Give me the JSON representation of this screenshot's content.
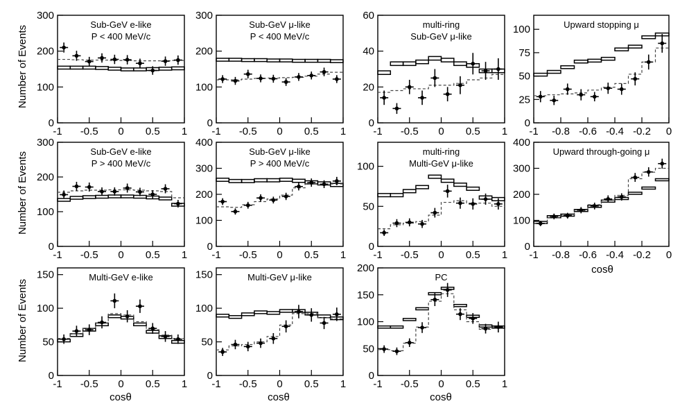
{
  "figure": {
    "ylabel_rows": [
      "Number of Events",
      "Number of Events",
      "Number of Events"
    ],
    "xlabels": [
      "cosθ",
      "cosθ",
      "cosθ",
      "cosθ"
    ]
  },
  "chart_data": [
    {
      "type": "histogram",
      "title": [
        "Sub-GeV e-like",
        "P < 400 MeV/c"
      ],
      "xlim": [
        -1,
        1
      ],
      "ylim": [
        0,
        300
      ],
      "xticks": [
        -1,
        -0.5,
        0,
        0.5,
        1
      ],
      "xticklabels": [
        "-1",
        "-0.5",
        "0",
        "0.5",
        "1"
      ],
      "yticks": [
        0,
        100,
        200,
        300
      ],
      "yticklabels": [
        "0",
        "100",
        "200",
        "300"
      ],
      "bin_edges": [
        -1,
        -0.8,
        -0.6,
        -0.4,
        -0.2,
        0,
        0.2,
        0.4,
        0.6,
        0.8,
        1
      ],
      "no_osc": [
        [
          150,
          158
        ],
        [
          150,
          158
        ],
        [
          150,
          158
        ],
        [
          149,
          157
        ],
        [
          147,
          155
        ],
        [
          145,
          153
        ],
        [
          145,
          153
        ],
        [
          146,
          154
        ],
        [
          147,
          155
        ],
        [
          148,
          156
        ]
      ],
      "osc": [
        177,
        176,
        175,
        175,
        174,
        174,
        173,
        173,
        173,
        174
      ],
      "data": [
        210,
        187,
        171,
        181,
        177,
        176,
        166,
        146,
        172,
        175
      ],
      "errors": [
        14,
        14,
        13,
        13,
        13,
        13,
        13,
        12,
        13,
        13
      ]
    },
    {
      "type": "histogram",
      "title": [
        "Sub-GeV μ-like",
        "P < 400 MeV/c"
      ],
      "xlim": [
        -1,
        1
      ],
      "ylim": [
        0,
        300
      ],
      "xticks": [
        -1,
        -0.5,
        0,
        0.5,
        1
      ],
      "xticklabels": [
        "-1",
        "-0.5",
        "0",
        "0.5",
        "1"
      ],
      "yticks": [
        0,
        100,
        200,
        300
      ],
      "yticklabels": [
        "0",
        "100",
        "200",
        "300"
      ],
      "bin_edges": [
        -1,
        -0.8,
        -0.6,
        -0.4,
        -0.2,
        0,
        0.2,
        0.4,
        0.6,
        0.8,
        1
      ],
      "no_osc": [
        [
          172,
          180
        ],
        [
          172,
          180
        ],
        [
          171,
          179
        ],
        [
          171,
          179
        ],
        [
          170,
          178
        ],
        [
          170,
          178
        ],
        [
          169,
          177
        ],
        [
          169,
          177
        ],
        [
          169,
          177
        ],
        [
          168,
          176
        ]
      ],
      "osc": [
        120,
        120,
        122,
        124,
        125,
        126,
        127,
        130,
        136,
        141
      ],
      "data": [
        122,
        117,
        136,
        124,
        123,
        114,
        128,
        132,
        142,
        122
      ],
      "errors": [
        11,
        11,
        12,
        11,
        11,
        11,
        11,
        11,
        12,
        11
      ]
    },
    {
      "type": "histogram",
      "title": [
        "multi-ring",
        "Sub-GeV μ-like"
      ],
      "xlim": [
        -1,
        1
      ],
      "ylim": [
        0,
        60
      ],
      "xticks": [
        -1,
        -0.5,
        0,
        0.5,
        1
      ],
      "xticklabels": [
        "-1",
        "-0.5",
        "0",
        "0.5",
        "1"
      ],
      "yticks": [
        0,
        20,
        40,
        60
      ],
      "yticklabels": [
        "0",
        "20",
        "40",
        "60"
      ],
      "bin_edges": [
        -1,
        -0.8,
        -0.6,
        -0.4,
        -0.2,
        0,
        0.2,
        0.4,
        0.6,
        0.8,
        1
      ],
      "no_osc": [
        [
          27,
          29
        ],
        [
          32,
          34
        ],
        [
          32,
          34
        ],
        [
          33,
          35
        ],
        [
          35,
          37
        ],
        [
          34,
          36
        ],
        [
          32,
          34
        ],
        [
          31,
          33
        ],
        [
          28,
          30
        ],
        [
          28,
          30
        ]
      ],
      "osc": [
        17,
        18,
        19,
        19,
        21,
        21,
        22,
        24,
        25,
        27
      ],
      "data": [
        14,
        8,
        20,
        14,
        25,
        16,
        21,
        33,
        29,
        30
      ],
      "errors": [
        4,
        3,
        4,
        4,
        5,
        4,
        5,
        6,
        5,
        6
      ]
    },
    {
      "type": "histogram",
      "title": [
        "Upward stopping μ"
      ],
      "xlim": [
        -1,
        0
      ],
      "ylim": [
        0,
        115
      ],
      "xticks": [
        -1,
        -0.8,
        -0.6,
        -0.4,
        -0.2,
        0
      ],
      "xticklabels": [
        "-1",
        "-0.8",
        "-0.6",
        "-0.4",
        "-0.2",
        "0"
      ],
      "yticks": [
        0,
        25,
        50,
        75,
        100
      ],
      "yticklabels": [
        "0",
        "25",
        "50",
        "75",
        "100"
      ],
      "bin_edges": [
        -1,
        -0.9,
        -0.8,
        -0.7,
        -0.6,
        -0.5,
        -0.4,
        -0.3,
        -0.2,
        -0.1,
        0
      ],
      "no_osc": [
        [
          50,
          53
        ],
        [
          53,
          56
        ],
        [
          58,
          61
        ],
        [
          64,
          67
        ],
        [
          65,
          68
        ],
        [
          67,
          70
        ],
        [
          77,
          80
        ],
        [
          80,
          83
        ],
        [
          90,
          93
        ],
        [
          93,
          96
        ]
      ],
      "osc": [
        29,
        30,
        31,
        32,
        35,
        38,
        42,
        52,
        65,
        80
      ],
      "data": [
        28,
        24,
        36,
        30,
        28,
        37,
        36,
        47,
        65,
        85
      ],
      "errors": [
        6,
        5,
        6,
        6,
        5,
        6,
        6,
        7,
        8,
        10
      ]
    },
    {
      "type": "histogram",
      "title": [
        "Sub-GeV e-like",
        "P > 400 MeV/c"
      ],
      "xlim": [
        -1,
        1
      ],
      "ylim": [
        0,
        300
      ],
      "xticks": [
        -1,
        -0.5,
        0,
        0.5,
        1
      ],
      "xticklabels": [
        "-1",
        "-0.5",
        "0",
        "0.5",
        "1"
      ],
      "yticks": [
        0,
        100,
        200,
        300
      ],
      "yticklabels": [
        "0",
        "100",
        "200",
        "300"
      ],
      "bin_edges": [
        -1,
        -0.8,
        -0.6,
        -0.4,
        -0.2,
        0,
        0.2,
        0.4,
        0.6,
        0.8,
        1
      ],
      "no_osc": [
        [
          130,
          138
        ],
        [
          136,
          144
        ],
        [
          138,
          146
        ],
        [
          139,
          147
        ],
        [
          140,
          148
        ],
        [
          140,
          148
        ],
        [
          139,
          147
        ],
        [
          137,
          145
        ],
        [
          134,
          142
        ],
        [
          116,
          124
        ]
      ],
      "osc": [
        156,
        160,
        162,
        162,
        163,
        163,
        162,
        160,
        158,
        140
      ],
      "data": [
        149,
        173,
        171,
        158,
        158,
        168,
        157,
        150,
        166,
        123
      ],
      "errors": [
        12,
        13,
        13,
        12,
        12,
        13,
        12,
        12,
        13,
        11
      ]
    },
    {
      "type": "histogram",
      "title": [
        "Sub-GeV μ-like",
        "P > 400 MeV/c"
      ],
      "xlim": [
        -1,
        1
      ],
      "ylim": [
        0,
        400
      ],
      "xticks": [
        -1,
        -0.5,
        0,
        0.5,
        1
      ],
      "xticklabels": [
        "-1",
        "-0.5",
        "0",
        "0.5",
        "1"
      ],
      "yticks": [
        0,
        100,
        200,
        300,
        400
      ],
      "yticklabels": [
        "0",
        "100",
        "200",
        "300",
        "400"
      ],
      "bin_edges": [
        -1,
        -0.8,
        -0.6,
        -0.4,
        -0.2,
        0,
        0.2,
        0.4,
        0.6,
        0.8,
        1
      ],
      "no_osc": [
        [
          250,
          262
        ],
        [
          245,
          257
        ],
        [
          245,
          257
        ],
        [
          248,
          260
        ],
        [
          248,
          260
        ],
        [
          250,
          262
        ],
        [
          246,
          258
        ],
        [
          240,
          252
        ],
        [
          236,
          248
        ],
        [
          230,
          242
        ]
      ],
      "osc": [
        152,
        150,
        160,
        172,
        182,
        197,
        225,
        240,
        235,
        240
      ],
      "data": [
        172,
        134,
        158,
        186,
        178,
        192,
        230,
        245,
        239,
        251
      ],
      "errors": [
        13,
        12,
        13,
        14,
        13,
        14,
        15,
        16,
        15,
        16
      ]
    },
    {
      "type": "histogram",
      "title": [
        "multi-ring",
        "Multi-GeV μ-like"
      ],
      "xlim": [
        -1,
        1
      ],
      "ylim": [
        0,
        130
      ],
      "xticks": [
        -1,
        -0.5,
        0,
        0.5,
        1
      ],
      "xticklabels": [
        "-1",
        "-0.5",
        "0",
        "0.5",
        "1"
      ],
      "yticks": [
        0,
        50,
        100
      ],
      "yticklabels": [
        "0",
        "50",
        "100"
      ],
      "bin_edges": [
        -1,
        -0.8,
        -0.6,
        -0.4,
        -0.2,
        0,
        0.2,
        0.4,
        0.6,
        0.8,
        1
      ],
      "no_osc": [
        [
          62,
          66
        ],
        [
          62,
          66
        ],
        [
          67,
          71
        ],
        [
          72,
          76
        ],
        [
          85,
          89
        ],
        [
          80,
          84
        ],
        [
          75,
          79
        ],
        [
          70,
          74
        ],
        [
          59,
          63
        ],
        [
          57,
          61
        ]
      ],
      "osc": [
        22,
        27,
        29,
        31,
        39,
        55,
        57,
        54,
        54,
        50
      ],
      "data": [
        17,
        29,
        30,
        28,
        42,
        69,
        54,
        53,
        59,
        53
      ],
      "errors": [
        4,
        5,
        5,
        5,
        6,
        8,
        7,
        7,
        7,
        7
      ]
    },
    {
      "type": "histogram",
      "title": [
        "Upward through-going μ"
      ],
      "xlim": [
        -1,
        0
      ],
      "ylim": [
        0,
        400
      ],
      "xticks": [
        -1,
        -0.8,
        -0.6,
        -0.4,
        -0.2,
        0
      ],
      "xticklabels": [
        "-1",
        "-0.8",
        "-0.6",
        "-0.4",
        "-0.2",
        "0"
      ],
      "yticks": [
        0,
        100,
        200,
        300,
        400
      ],
      "yticklabels": [
        "0",
        "100",
        "200",
        "300",
        "400"
      ],
      "bin_edges": [
        -1,
        -0.9,
        -0.8,
        -0.7,
        -0.6,
        -0.5,
        -0.4,
        -0.3,
        -0.2,
        -0.1,
        0
      ],
      "no_osc": [
        [
          88,
          96
        ],
        [
          110,
          118
        ],
        [
          116,
          124
        ],
        [
          134,
          142
        ],
        [
          150,
          158
        ],
        [
          170,
          178
        ],
        [
          180,
          188
        ],
        [
          200,
          208
        ],
        [
          220,
          228
        ],
        [
          252,
          260
        ]
      ],
      "osc": [
        88,
        110,
        120,
        140,
        160,
        178,
        196,
        260,
        285,
        300
      ],
      "data": [
        88,
        115,
        118,
        139,
        155,
        182,
        190,
        265,
        286,
        318
      ],
      "errors": [
        10,
        11,
        11,
        12,
        13,
        14,
        14,
        17,
        18,
        19
      ]
    },
    {
      "type": "histogram",
      "title": [
        "Multi-GeV e-like"
      ],
      "xlim": [
        -1,
        1
      ],
      "ylim": [
        0,
        160
      ],
      "xticks": [
        -1,
        -0.5,
        0,
        0.5,
        1
      ],
      "xticklabels": [
        "-1",
        "-0.5",
        "0",
        "0.5",
        "1"
      ],
      "yticks": [
        0,
        50,
        100,
        150
      ],
      "yticklabels": [
        "0",
        "50",
        "100",
        "150"
      ],
      "bin_edges": [
        -1,
        -0.8,
        -0.6,
        -0.4,
        -0.2,
        0,
        0.2,
        0.4,
        0.6,
        0.8,
        1
      ],
      "no_osc": [
        [
          50,
          54
        ],
        [
          58,
          62
        ],
        [
          66,
          70
        ],
        [
          74,
          78
        ],
        [
          86,
          90
        ],
        [
          84,
          88
        ],
        [
          74,
          78
        ],
        [
          63,
          67
        ],
        [
          55,
          59
        ],
        [
          48,
          52
        ]
      ],
      "osc": [
        55,
        62,
        70,
        78,
        92,
        90,
        80,
        68,
        60,
        55
      ],
      "data": [
        54,
        66,
        68,
        79,
        111,
        88,
        103,
        70,
        58,
        54
      ],
      "errors": [
        7,
        8,
        8,
        9,
        11,
        9,
        10,
        8,
        8,
        7
      ]
    },
    {
      "type": "histogram",
      "title": [
        "Multi-GeV μ-like"
      ],
      "xlim": [
        -1,
        1
      ],
      "ylim": [
        0,
        160
      ],
      "xticks": [
        -1,
        -0.5,
        0,
        0.5,
        1
      ],
      "xticklabels": [
        "-1",
        "-0.5",
        "0",
        "0.5",
        "1"
      ],
      "yticks": [
        0,
        50,
        100,
        150
      ],
      "yticklabels": [
        "0",
        "50",
        "100",
        "150"
      ],
      "bin_edges": [
        -1,
        -0.8,
        -0.6,
        -0.4,
        -0.2,
        0,
        0.2,
        0.4,
        0.6,
        0.8,
        1
      ],
      "no_osc": [
        [
          87,
          91
        ],
        [
          85,
          89
        ],
        [
          89,
          93
        ],
        [
          92,
          96
        ],
        [
          91,
          95
        ],
        [
          94,
          98
        ],
        [
          94,
          98
        ],
        [
          90,
          94
        ],
        [
          86,
          90
        ],
        [
          83,
          87
        ]
      ],
      "osc": [
        38,
        44,
        46,
        50,
        58,
        75,
        92,
        92,
        86,
        84
      ],
      "data": [
        35,
        46,
        43,
        48,
        55,
        73,
        95,
        90,
        78,
        91
      ],
      "errors": [
        6,
        7,
        7,
        7,
        8,
        9,
        10,
        10,
        9,
        10
      ]
    },
    {
      "type": "histogram",
      "title": [
        "PC"
      ],
      "xlim": [
        -1,
        1
      ],
      "ylim": [
        0,
        200
      ],
      "xticks": [
        -1,
        -0.5,
        0,
        0.5,
        1
      ],
      "xticklabels": [
        "-1",
        "-0.5",
        "0",
        "0.5",
        "1"
      ],
      "yticks": [
        0,
        50,
        100,
        150,
        200
      ],
      "yticklabels": [
        "0",
        "50",
        "100",
        "150",
        "200"
      ],
      "bin_edges": [
        -1,
        -0.8,
        -0.6,
        -0.4,
        -0.2,
        0,
        0.2,
        0.4,
        0.6,
        0.8,
        1
      ],
      "no_osc": [
        [
          88,
          92
        ],
        [
          88,
          92
        ],
        [
          102,
          106
        ],
        [
          122,
          126
        ],
        [
          150,
          154
        ],
        [
          160,
          164
        ],
        [
          128,
          132
        ],
        [
          108,
          112
        ],
        [
          90,
          94
        ],
        [
          88,
          92
        ]
      ],
      "osc": [
        48,
        46,
        60,
        90,
        138,
        152,
        122,
        100,
        86,
        90
      ],
      "data": [
        49,
        45,
        61,
        89,
        141,
        159,
        114,
        106,
        87,
        90
      ],
      "errors": [
        7,
        7,
        8,
        10,
        12,
        13,
        11,
        10,
        9,
        10
      ]
    }
  ]
}
